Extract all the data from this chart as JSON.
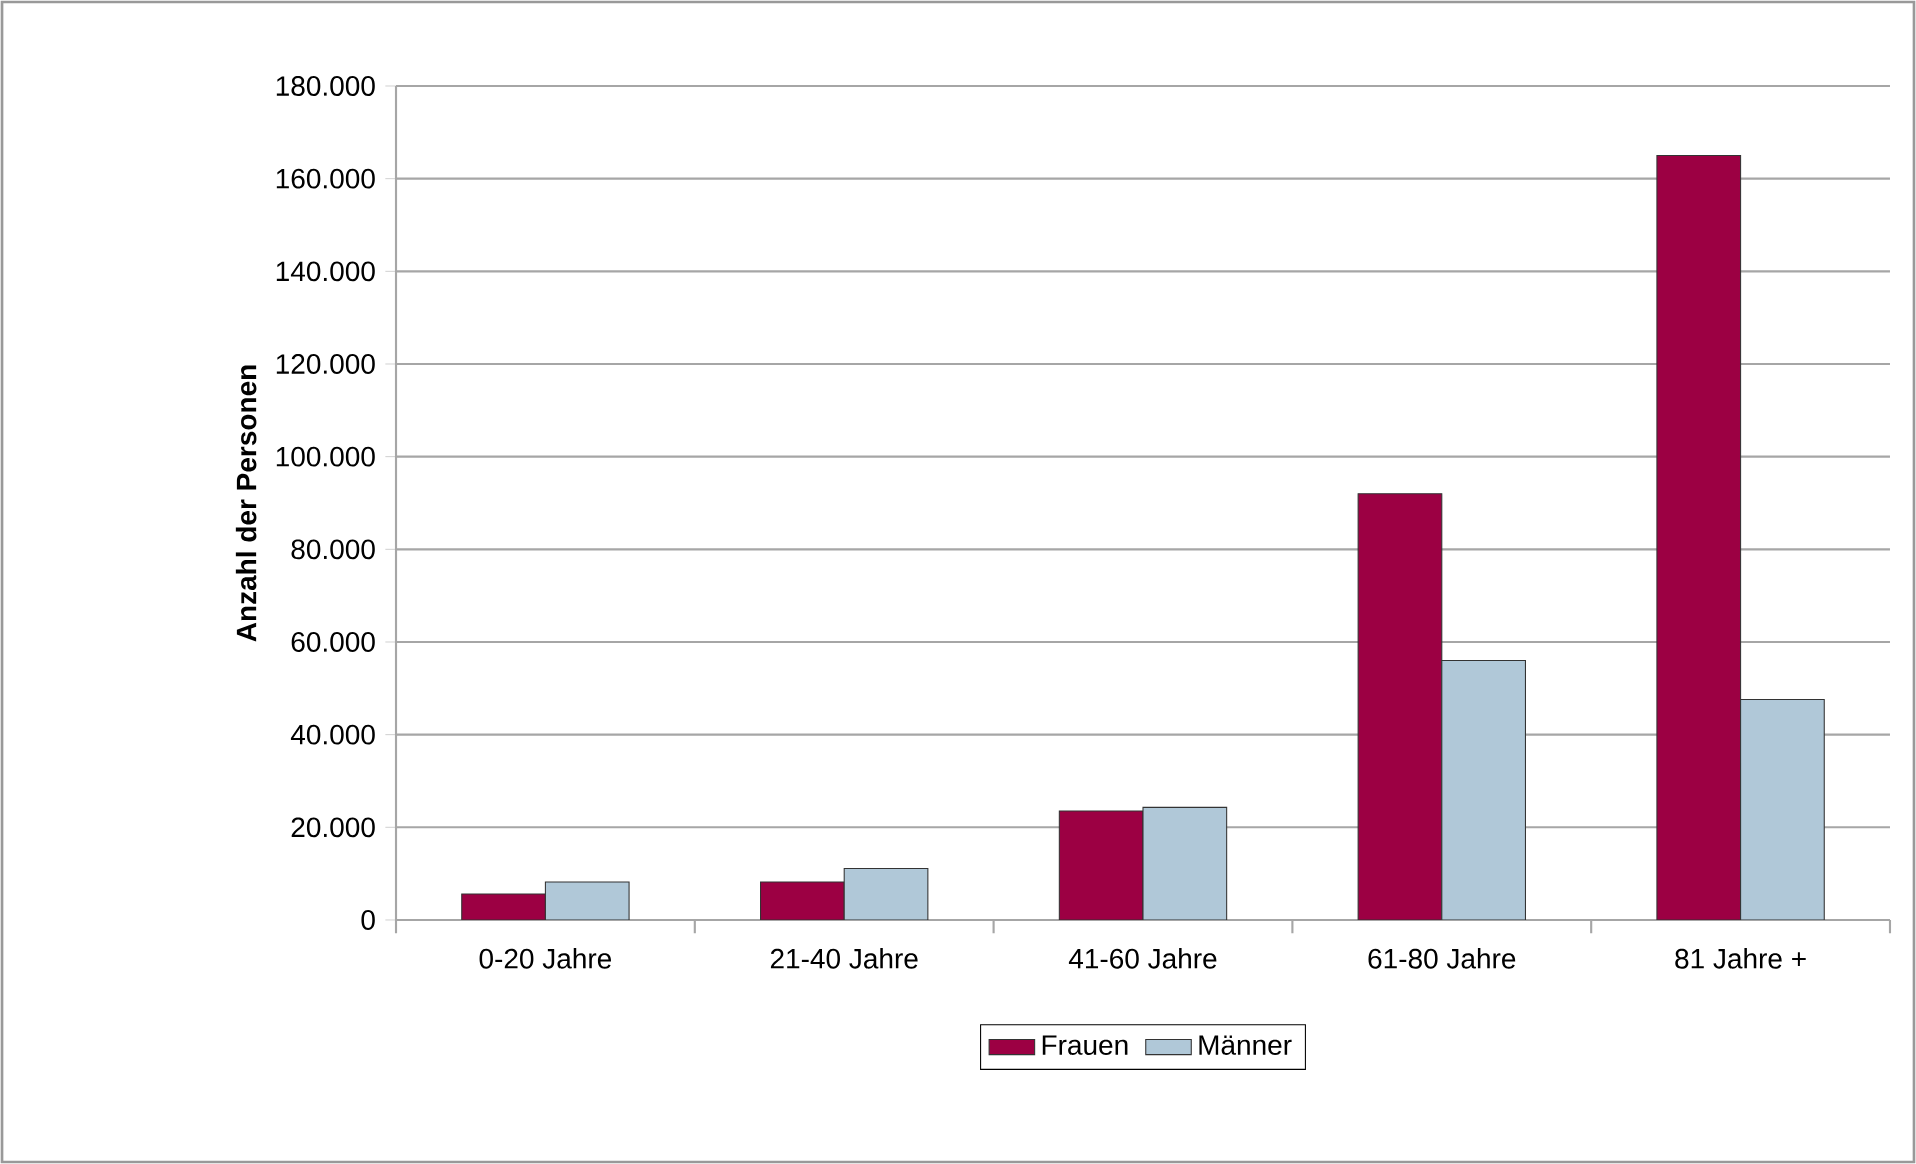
{
  "chart_data": {
    "type": "bar",
    "ylabel": "Anzahl der Personen",
    "categories": [
      "0-20 Jahre",
      "21-40 Jahre",
      "41-60 Jahre",
      "61-80 Jahre",
      "81 Jahre +"
    ],
    "series": [
      {
        "name": "Frauen",
        "color": "#9c0043",
        "values": [
          5600,
          8200,
          23500,
          92000,
          165000
        ]
      },
      {
        "name": "Männer",
        "color": "#b0c8d8",
        "values": [
          8200,
          11100,
          24300,
          56000,
          47600
        ]
      }
    ],
    "ylim": [
      0,
      180000
    ],
    "yticks": [
      {
        "value": 0,
        "label": "0"
      },
      {
        "value": 20000,
        "label": "20.000"
      },
      {
        "value": 40000,
        "label": "40.000"
      },
      {
        "value": 60000,
        "label": "60.000"
      },
      {
        "value": 80000,
        "label": "80.000"
      },
      {
        "value": 100000,
        "label": "100.000"
      },
      {
        "value": 120000,
        "label": "120.000"
      },
      {
        "value": 140000,
        "label": "140.000"
      },
      {
        "value": 160000,
        "label": "160.000"
      },
      {
        "value": 180000,
        "label": "180.000"
      }
    ],
    "grid": "y",
    "legend": "bottom"
  }
}
